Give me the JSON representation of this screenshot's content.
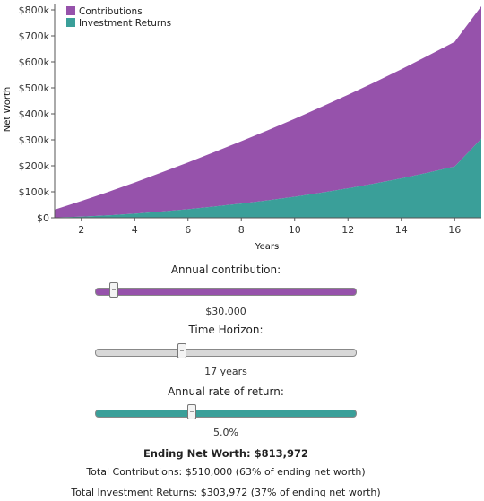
{
  "chart_data": {
    "type": "area",
    "stacked": true,
    "xlabel": "Years",
    "ylabel": "Net Worth",
    "xlim": [
      1,
      17
    ],
    "ylim": [
      0,
      800000
    ],
    "x_ticks": [
      2,
      4,
      6,
      8,
      10,
      12,
      14,
      16
    ],
    "y_ticks": [
      0,
      100000,
      200000,
      300000,
      400000,
      500000,
      600000,
      700000,
      800000
    ],
    "x_tick_labels": [
      "2",
      "4",
      "6",
      "8",
      "10",
      "12",
      "14",
      "16"
    ],
    "y_tick_labels": [
      "$0",
      "$100k",
      "$200k",
      "$300k",
      "$400k",
      "$500k",
      "$600k",
      "$700k",
      "$800k"
    ],
    "legend_position": "top-left",
    "x": [
      1,
      2,
      3,
      4,
      5,
      6,
      7,
      8,
      9,
      10,
      11,
      12,
      13,
      14,
      15,
      16,
      17
    ],
    "series": [
      {
        "name": "Contributions",
        "color": "#9652ab",
        "values": [
          30000,
          60000,
          90000,
          120000,
          150000,
          180000,
          210000,
          240000,
          270000,
          300000,
          330000,
          360000,
          390000,
          420000,
          450000,
          480000,
          510000
        ]
      },
      {
        "name": "Investment Returns",
        "color": "#3a9f99",
        "values": [
          1500,
          4575,
          9304,
          15769,
          24058,
          33261,
          43474,
          54798,
          67338,
          81206,
          96516,
          113342,
          131759,
          151847,
          173690,
          197374,
          303972
        ]
      }
    ]
  },
  "controls": {
    "contribution": {
      "label": "Annual contribution:",
      "value_text": "$30,000",
      "fraction": 0.07,
      "fill_color": "#9652ab"
    },
    "horizon": {
      "label": "Time Horizon:",
      "value_text": "17 years",
      "fraction": 0.33,
      "fill_color": "#d8d8d8"
    },
    "rate": {
      "label": "Annual rate of return:",
      "value_text": "5.0%",
      "fraction": 0.37,
      "fill_color": "#3a9f99"
    }
  },
  "summary": {
    "ending": "Ending Net Worth: $813,972",
    "contributions": "Total Contributions: $510,000 (63% of ending net worth)",
    "returns": "Total Investment Returns: $303,972 (37% of ending net worth)"
  }
}
